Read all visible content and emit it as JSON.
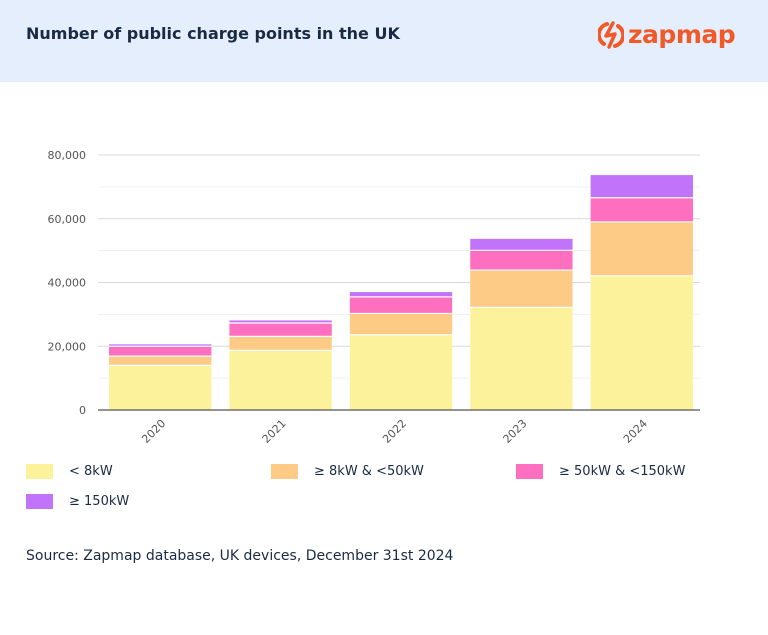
{
  "header": {
    "title": "Number of public charge points in the UK",
    "logo_text": "zapmap",
    "logo_color": "#f05a28",
    "background": "#e4eefc"
  },
  "chart_data": {
    "type": "bar",
    "stacked": true,
    "categories": [
      "2020",
      "2021",
      "2022",
      "2023",
      "2024"
    ],
    "series": [
      {
        "name": "< 8kW",
        "color": "#fdf29c",
        "values": [
          14000,
          18700,
          23600,
          32200,
          42100
        ]
      },
      {
        "name": "≥ 8kW & <50kW",
        "color": "#fdcb85",
        "values": [
          2900,
          4400,
          6700,
          11700,
          16900
        ]
      },
      {
        "name": "≥ 50kW & <150kW",
        "color": "#ff6fc0",
        "values": [
          3100,
          4200,
          5200,
          6200,
          7600
        ]
      },
      {
        "name": "≥ 150kW",
        "color": "#c173f9",
        "values": [
          600,
          800,
          1500,
          3600,
          7100
        ]
      }
    ],
    "ylim": [
      0,
      80000
    ],
    "yticks": [
      0,
      20000,
      40000,
      60000,
      80000
    ],
    "ytick_labels": [
      "0",
      "20,000",
      "40,000",
      "60,000",
      "80,000"
    ],
    "grid": true,
    "legend_placement": "bottom"
  },
  "source": "Source: Zapmap database, UK devices, December 31st 2024"
}
